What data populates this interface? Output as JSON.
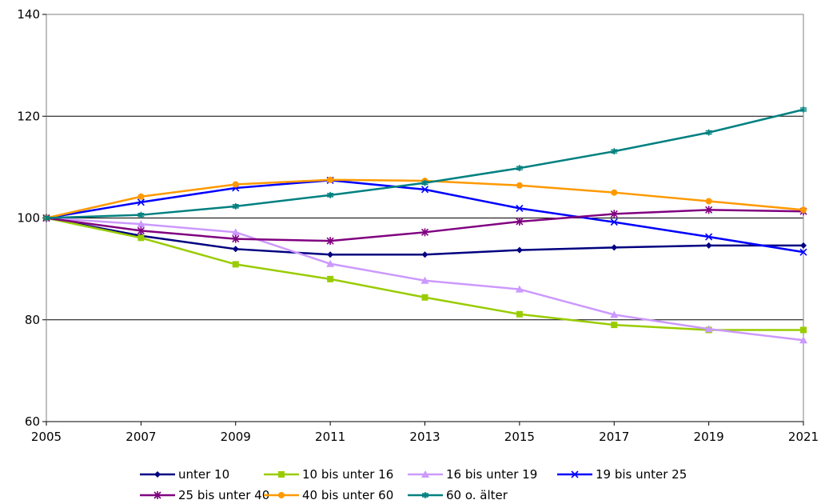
{
  "chart_data": {
    "type": "line",
    "x": [
      2005,
      2007,
      2009,
      2011,
      2013,
      2015,
      2017,
      2019,
      2021
    ],
    "x_tick_labels": [
      "2005",
      "2007",
      "2009",
      "2011",
      "2013",
      "2015",
      "2017",
      "2019",
      "2021"
    ],
    "ylim": [
      60,
      140
    ],
    "y_ticks": [
      60,
      80,
      100,
      120,
      140
    ],
    "y_tick_labels": [
      "60",
      "80",
      "100",
      "120",
      "140"
    ],
    "grid": "horizontal",
    "legend_position": "bottom",
    "series": [
      {
        "name": "unter 10",
        "color": "#000080",
        "marker": "diamond",
        "values": [
          100,
          96.5,
          93.9,
          92.8,
          92.8,
          93.7,
          94.2,
          94.6,
          94.6
        ]
      },
      {
        "name": "10 bis unter 16",
        "color": "#99CC00",
        "marker": "square",
        "values": [
          100,
          96.1,
          90.9,
          88.0,
          84.4,
          81.1,
          79.0,
          78.0,
          78.0
        ]
      },
      {
        "name": "16 bis unter 19",
        "color": "#CC99FF",
        "marker": "triangle",
        "values": [
          100,
          98.8,
          97.2,
          91.0,
          87.7,
          86.0,
          81.0,
          78.2,
          76.0
        ]
      },
      {
        "name": "19 bis unter 25",
        "color": "#0000FF",
        "marker": "x",
        "values": [
          100,
          103.1,
          105.9,
          107.4,
          105.6,
          101.9,
          99.2,
          96.3,
          93.3
        ]
      },
      {
        "name": "25 bis unter 40",
        "color": "#800080",
        "marker": "asterisk",
        "values": [
          100,
          97.5,
          95.9,
          95.5,
          97.2,
          99.3,
          100.8,
          101.6,
          101.3
        ]
      },
      {
        "name": "40 bis unter 60",
        "color": "#FF9900",
        "marker": "circle",
        "values": [
          100,
          104.2,
          106.6,
          107.5,
          107.3,
          106.4,
          105.0,
          103.3,
          101.6
        ]
      },
      {
        "name": "60 o. älter",
        "color": "#008080",
        "marker": "plus",
        "values": [
          100,
          100.6,
          102.3,
          104.5,
          106.9,
          109.8,
          113.1,
          116.8,
          121.3
        ]
      }
    ]
  }
}
